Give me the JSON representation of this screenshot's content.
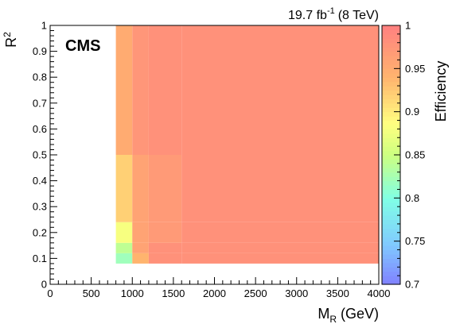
{
  "chart_data": {
    "type": "heatmap",
    "lumi_label": "19.7 fb",
    "lumi_sup": "-1",
    "lumi_energy": "(8 TeV)",
    "experiment": "CMS",
    "xlabel_main": "M",
    "xlabel_sub": "R",
    "xlabel_unit": " (GeV)",
    "ylabel_main": "R",
    "ylabel_sup": "2",
    "zlabel": "Efficiency",
    "xlim": [
      0,
      4000
    ],
    "ylim": [
      0,
      1
    ],
    "zlim": [
      0.7,
      1.0
    ],
    "x_ticks": [
      "0",
      "500",
      "1000",
      "1500",
      "2000",
      "2500",
      "3000",
      "3500",
      "4000"
    ],
    "y_ticks": [
      "0",
      "0.1",
      "0.2",
      "0.3",
      "0.4",
      "0.5",
      "0.6",
      "0.7",
      "0.8",
      "0.9",
      "1"
    ],
    "z_ticks": [
      "0.7",
      "0.75",
      "0.8",
      "0.85",
      "0.9",
      "0.95",
      "1"
    ],
    "x_bins": [
      800,
      1000,
      1200,
      1600,
      2000,
      4000
    ],
    "y_bins": [
      0.08,
      0.12,
      0.16,
      0.24,
      0.5,
      1.0
    ],
    "efficiency": [
      [
        0.82,
        0.94,
        0.98,
        0.98,
        0.98
      ],
      [
        0.84,
        0.96,
        0.98,
        0.98,
        0.98
      ],
      [
        0.88,
        0.96,
        0.97,
        0.98,
        0.98
      ],
      [
        0.92,
        0.96,
        0.97,
        0.98,
        0.98
      ],
      [
        0.95,
        0.975,
        0.98,
        0.98,
        0.98
      ]
    ]
  }
}
